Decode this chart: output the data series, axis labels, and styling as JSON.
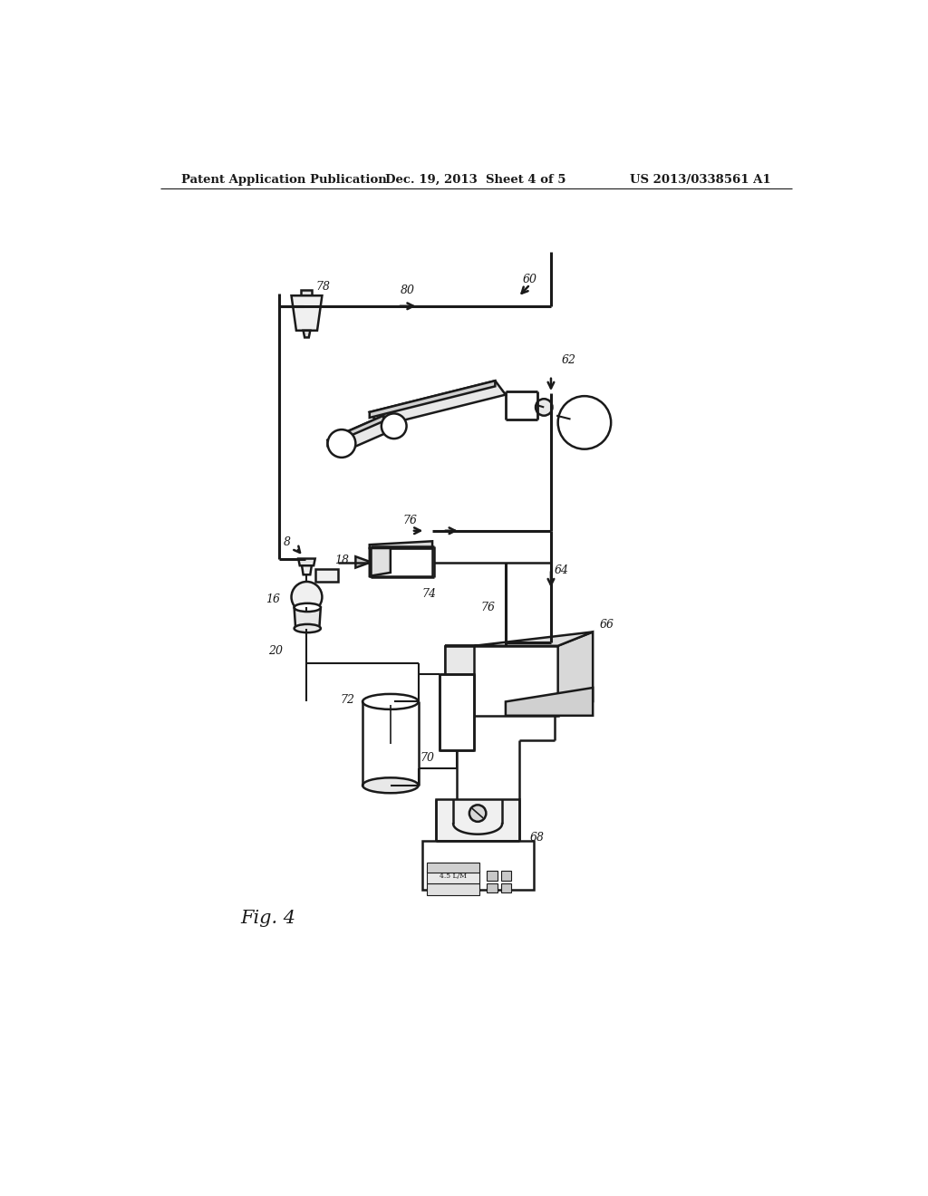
{
  "bg_color": "#ffffff",
  "lc": "#1a1a1a",
  "header_left": "Patent Application Publication",
  "header_center": "Dec. 19, 2013  Sheet 4 of 5",
  "header_right": "US 2013/0338561 A1",
  "fig_label": "Fig. 4",
  "lw": 1.8
}
